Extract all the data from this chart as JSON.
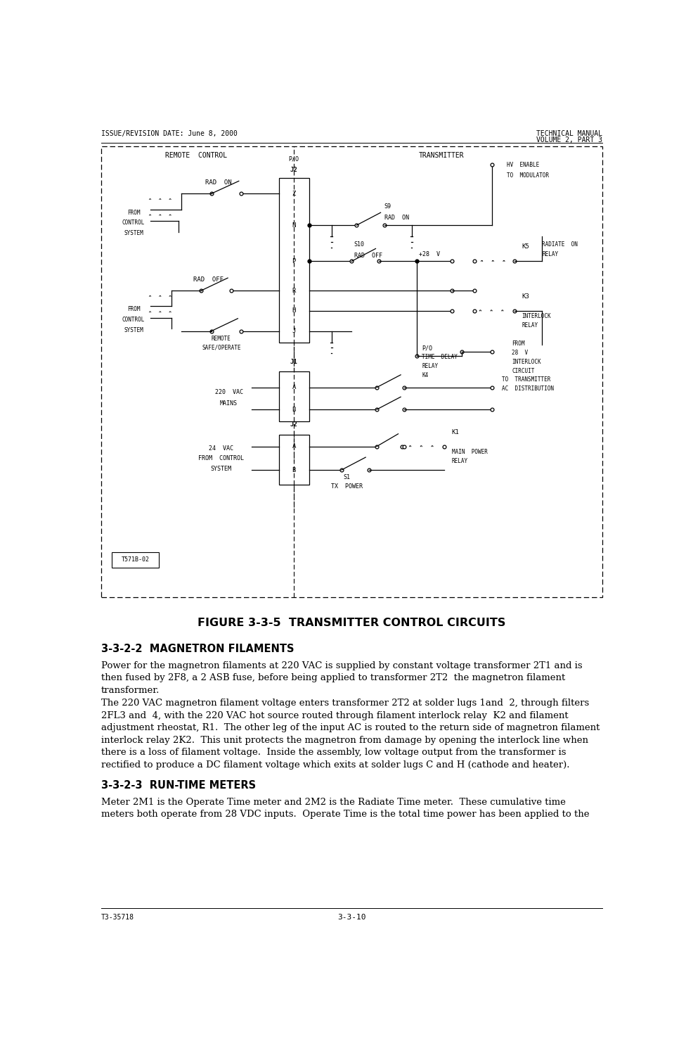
{
  "page_width": 9.76,
  "page_height": 14.77,
  "bg_color": "#ffffff",
  "header_left": "ISSUE/REVISION DATE: June 8, 2000",
  "header_right_line1": "TECHNICAL MANUAL",
  "header_right_line2": "VOLUME 2, PART 3",
  "footer_left": "T3-35718",
  "footer_center": "3-3-10",
  "figure_caption": "FIGURE 3-3-5  TRANSMITTER CONTROL CIRCUITS",
  "section_222_title": "3-3-2-2  MAGNETRON FILAMENTS",
  "section_222_para1": "Power for the magnetron filaments at 220 VAC is supplied by constant voltage transformer 2T1 and is\nthen fused by 2F8, a 2 ASB fuse, before being applied to transformer 2T2  the magnetron filament\ntransformer.",
  "section_222_para2": "The 220 VAC magnetron filament voltage enters transformer 2T2 at solder lugs 1and  2, through filters\n2FL3 and  4, with the 220 VAC hot source routed through filament interlock relay  K2 and filament\nadjustment rheostat, R1.  The other leg of the input AC is routed to the return side of magnetron filament\ninterlock relay 2K2.  This unit protects the magnetron from damage by opening the interlock line when\nthere is a loss of filament voltage.  Inside the assembly, low voltage output from the transformer is\nrectified to produce a DC filament voltage which exits at solder lugs C and H (cathode and heater).",
  "section_223_title": "3-3-2-3  RUN-TIME METERS",
  "section_223_para1": "Meter 2M1 is the Operate Time meter and 2M2 is the Radiate Time meter.  These cumulative time\nmeters both operate from 28 VDC inputs.  Operate Time is the total time power has been applied to the",
  "text_color": "#000000",
  "header_font_size": 7.0,
  "body_font_size": 9.5,
  "section_title_font_size": 10.5,
  "figure_caption_font_size": 11.5,
  "mono_font": "monospace"
}
